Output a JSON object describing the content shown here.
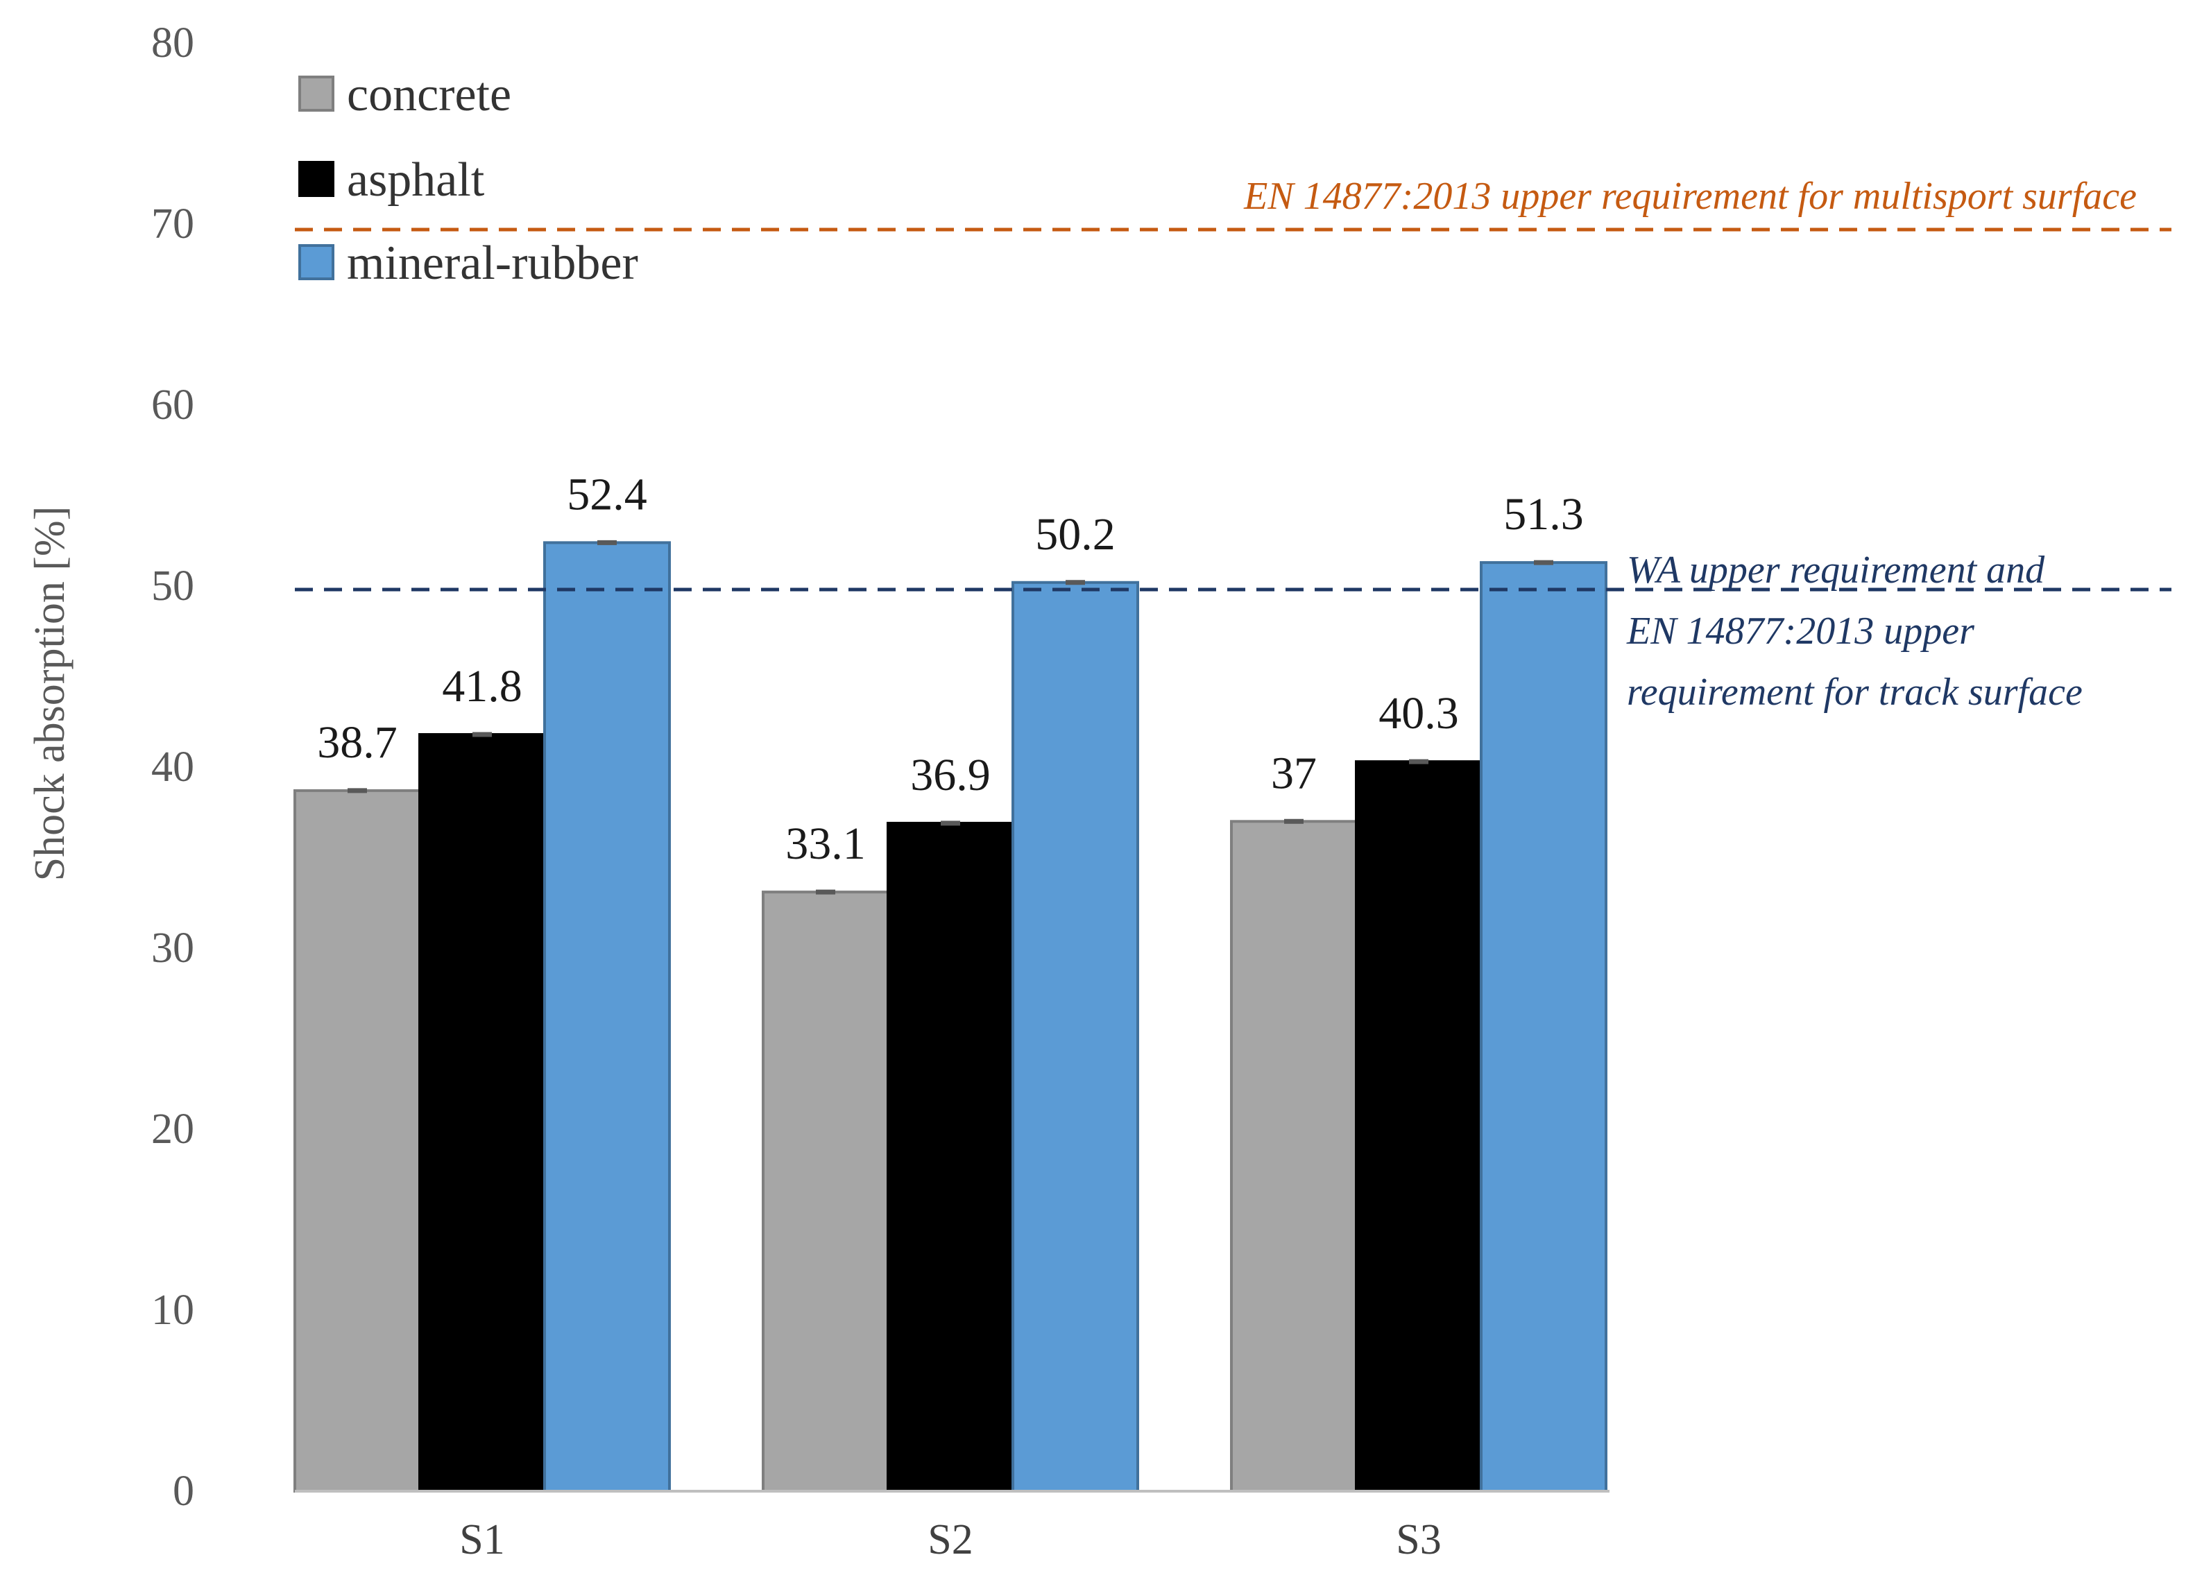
{
  "chart_data": {
    "type": "bar",
    "title": "",
    "xlabel": "",
    "ylabel": "Shock absorption [%]",
    "ylim": [
      0,
      80
    ],
    "yticks": [
      0,
      10,
      20,
      30,
      40,
      50,
      60,
      70,
      80
    ],
    "categories": [
      "S1",
      "S2",
      "S3"
    ],
    "series": [
      {
        "name": "concrete",
        "color": "#a6a6a6",
        "edge": "#7f7f7f",
        "values": [
          38.7,
          33.1,
          37
        ],
        "labels": [
          "38.7",
          "33.1",
          "37"
        ]
      },
      {
        "name": "asphalt",
        "color": "#000000",
        "edge": "#000000",
        "values": [
          41.8,
          36.9,
          40.3
        ],
        "labels": [
          "41.8",
          "36.9",
          "40.3"
        ]
      },
      {
        "name": "mineral-rubber",
        "color": "#5b9bd5",
        "edge": "#41719c",
        "values": [
          52.4,
          50.2,
          51.3
        ],
        "labels": [
          "52.4",
          "50.2",
          "51.3"
        ]
      }
    ],
    "legend_position": "top-left",
    "reference_lines": [
      {
        "value": 70,
        "color": "#c55a11",
        "label_lines": [
          "EN 14877:2013 upper requirement for multisport surface"
        ]
      },
      {
        "value": 50,
        "color": "#1f3864",
        "label_lines": [
          "WA upper requirement and",
          "EN 14877:2013 upper",
          "requirement for track surface"
        ]
      }
    ],
    "grid": false
  }
}
